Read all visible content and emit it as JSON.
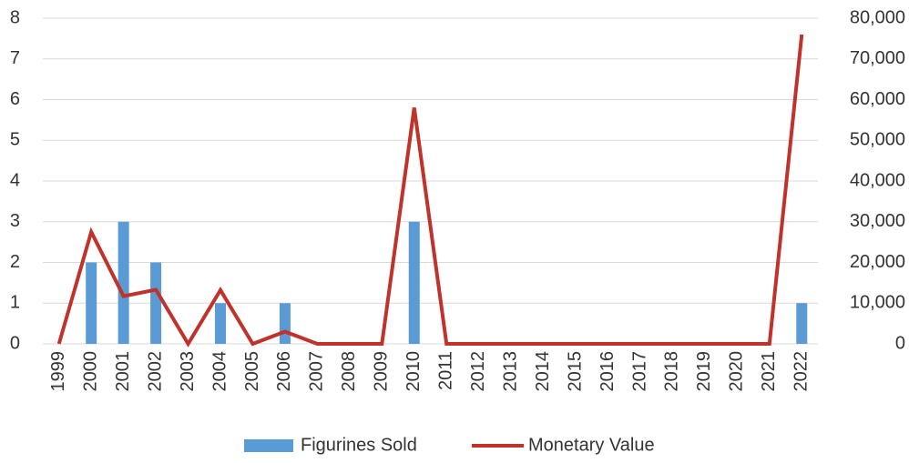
{
  "chart_data": {
    "type": "combo",
    "categories": [
      "1999",
      "2000",
      "2001",
      "2002",
      "2003",
      "2004",
      "2005",
      "2006",
      "2007",
      "2008",
      "2009",
      "2010",
      "2011",
      "2012",
      "2013",
      "2014",
      "2015",
      "2016",
      "2017",
      "2018",
      "2019",
      "2020",
      "2021",
      "2022"
    ],
    "series": [
      {
        "name": "Figurines Sold",
        "type": "bar",
        "color": "#5b9bd5",
        "axis": "y",
        "values": [
          0,
          2,
          3,
          2,
          0,
          1,
          0,
          1,
          0,
          0,
          0,
          3,
          0,
          0,
          0,
          0,
          0,
          0,
          0,
          0,
          0,
          0,
          0,
          1
        ]
      },
      {
        "name": "Monetary Value",
        "type": "line",
        "color": "#c0332b",
        "axis": "y2",
        "values": [
          0,
          27500,
          11700,
          13300,
          0,
          13200,
          0,
          3000,
          0,
          0,
          0,
          58000,
          0,
          0,
          0,
          0,
          0,
          0,
          0,
          0,
          0,
          0,
          0,
          76000
        ]
      }
    ],
    "ylim": [
      0,
      8
    ],
    "yticks": [
      0,
      1,
      2,
      3,
      4,
      5,
      6,
      7,
      8
    ],
    "y2lim": [
      0,
      80000
    ],
    "y2ticks": [
      0,
      {
        "value": 10000,
        "label": "10,000"
      },
      {
        "value": 20000,
        "label": "20,000"
      },
      {
        "value": 30000,
        "label": "30,000"
      },
      {
        "value": 40000,
        "label": "40,000"
      },
      {
        "value": 50000,
        "label": "50,000"
      },
      {
        "value": 60000,
        "label": "60,000"
      },
      {
        "value": 70000,
        "label": "70,000"
      },
      {
        "value": 80000,
        "label": "80,000"
      }
    ],
    "grid": true,
    "legend": "bottom"
  }
}
